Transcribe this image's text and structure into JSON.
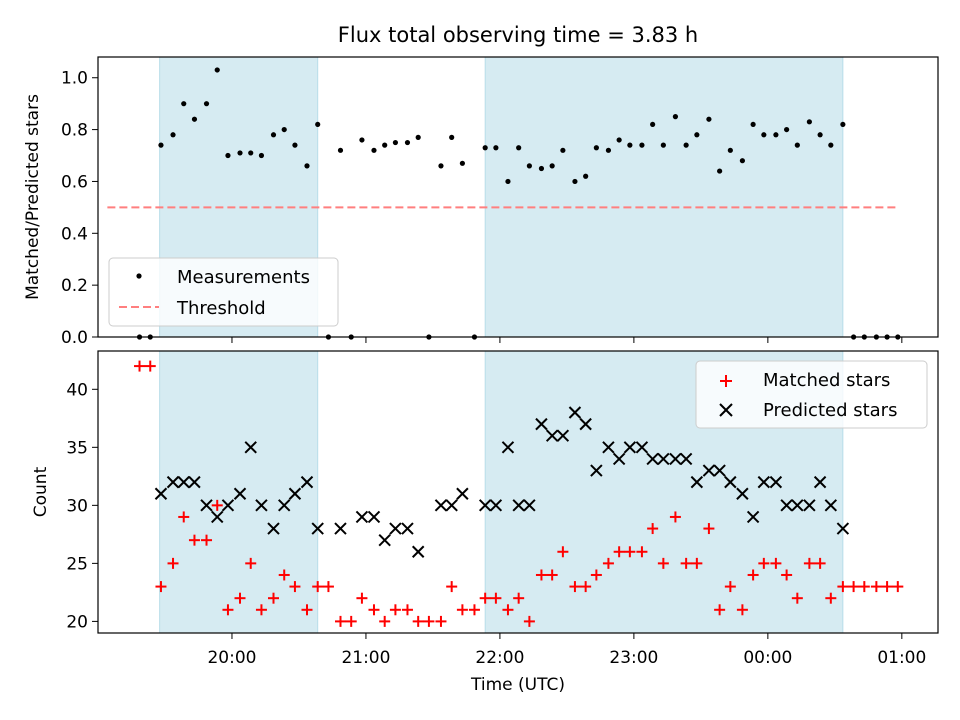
{
  "chart_data": {
    "type": "scatter",
    "title": "Flux total observing time = 3.83 h",
    "xlabel": "Time (UTC)",
    "x_ticks": [
      "20:00",
      "21:00",
      "22:00",
      "23:00",
      "00:00",
      "01:00"
    ],
    "x_tick_hours": [
      20,
      21,
      22,
      23,
      24,
      25
    ],
    "xlim_hours": [
      19.0,
      25.27
    ],
    "shaded_intervals_hours": [
      [
        19.46,
        20.64
      ],
      [
        21.89,
        24.56
      ]
    ],
    "colors": {
      "shade": "#add8e6",
      "threshold": "#ff7f7f",
      "matched": "#ff0000",
      "predicted": "#000000"
    },
    "panels": [
      {
        "ylabel": "Matched/Predicted stars",
        "ylim": [
          0,
          1.08
        ],
        "yticks": [
          "0.0",
          "0.2",
          "0.4",
          "0.6",
          "0.8",
          "1.0"
        ],
        "ytick_values": [
          0,
          0.2,
          0.4,
          0.6,
          0.8,
          1.0
        ],
        "legend": {
          "location": "lower-left",
          "entries": [
            "Measurements",
            "Threshold"
          ]
        },
        "threshold": {
          "name": "Threshold",
          "value": 0.5,
          "x_range_hours": [
            19.07,
            24.97
          ]
        },
        "series": [
          {
            "name": "Measurements",
            "x": [
              19.31,
              19.39,
              19.47,
              19.56,
              19.64,
              19.72,
              19.81,
              19.89,
              19.97,
              20.06,
              20.14,
              20.22,
              20.31,
              20.39,
              20.47,
              20.56,
              20.64,
              20.72,
              20.81,
              20.89,
              20.97,
              21.06,
              21.14,
              21.22,
              21.31,
              21.39,
              21.47,
              21.56,
              21.64,
              21.72,
              21.81,
              21.89,
              21.97,
              22.06,
              22.14,
              22.22,
              22.31,
              22.39,
              22.47,
              22.56,
              22.64,
              22.72,
              22.81,
              22.89,
              22.97,
              23.06,
              23.14,
              23.22,
              23.31,
              23.39,
              23.47,
              23.56,
              23.64,
              23.72,
              23.81,
              23.89,
              23.97,
              24.06,
              24.14,
              24.22,
              24.31,
              24.39,
              24.47,
              24.56,
              24.64,
              24.72,
              24.81,
              24.89,
              24.97
            ],
            "y": [
              0.0,
              0.0,
              0.74,
              0.78,
              0.9,
              0.84,
              0.9,
              1.03,
              0.7,
              0.71,
              0.71,
              0.7,
              0.78,
              0.8,
              0.74,
              0.66,
              0.82,
              0.0,
              0.72,
              0.0,
              0.76,
              0.72,
              0.74,
              0.75,
              0.75,
              0.77,
              0.0,
              0.66,
              0.77,
              0.67,
              0.0,
              0.73,
              0.73,
              0.6,
              0.73,
              0.66,
              0.65,
              0.66,
              0.72,
              0.6,
              0.62,
              0.73,
              0.72,
              0.76,
              0.74,
              0.74,
              0.82,
              0.74,
              0.85,
              0.74,
              0.78,
              0.84,
              0.64,
              0.72,
              0.68,
              0.82,
              0.78,
              0.78,
              0.8,
              0.74,
              0.83,
              0.78,
              0.74,
              0.82,
              0.0,
              0.0,
              0.0,
              0.0,
              0.0
            ]
          }
        ]
      },
      {
        "ylabel": "Count",
        "ylim": [
          19,
          43.3
        ],
        "yticks": [
          "20",
          "25",
          "30",
          "35",
          "40"
        ],
        "ytick_values": [
          20,
          25,
          30,
          35,
          40
        ],
        "legend": {
          "location": "upper-right",
          "entries": [
            "Matched stars",
            "Predicted stars"
          ]
        },
        "series": [
          {
            "name": "Matched stars",
            "marker": "plus",
            "x": [
              19.31,
              19.39,
              19.47,
              19.56,
              19.64,
              19.72,
              19.81,
              19.89,
              19.97,
              20.06,
              20.14,
              20.22,
              20.31,
              20.39,
              20.47,
              20.56,
              20.64,
              20.72,
              20.81,
              20.89,
              20.97,
              21.06,
              21.14,
              21.22,
              21.31,
              21.39,
              21.47,
              21.56,
              21.64,
              21.72,
              21.81,
              21.89,
              21.97,
              22.06,
              22.14,
              22.22,
              22.31,
              22.39,
              22.47,
              22.56,
              22.64,
              22.72,
              22.81,
              22.89,
              22.97,
              23.06,
              23.14,
              23.22,
              23.31,
              23.39,
              23.47,
              23.56,
              23.64,
              23.72,
              23.81,
              23.89,
              23.97,
              24.06,
              24.14,
              24.22,
              24.31,
              24.39,
              24.47,
              24.56,
              24.64,
              24.72,
              24.81,
              24.89,
              24.97
            ],
            "y": [
              42,
              42,
              23,
              25,
              29,
              27,
              27,
              30,
              21,
              22,
              25,
              21,
              22,
              24,
              23,
              21,
              23,
              23,
              20,
              20,
              22,
              21,
              20,
              21,
              21,
              20,
              20,
              20,
              23,
              21,
              21,
              22,
              22,
              21,
              22,
              20,
              24,
              24,
              26,
              23,
              23,
              24,
              25,
              26,
              26,
              26,
              28,
              25,
              29,
              25,
              25,
              28,
              21,
              23,
              21,
              24,
              25,
              25,
              24,
              22,
              25,
              25,
              22,
              23,
              23,
              23,
              23,
              23,
              23
            ]
          },
          {
            "name": "Predicted stars",
            "marker": "x",
            "x": [
              19.47,
              19.56,
              19.64,
              19.72,
              19.81,
              19.89,
              19.97,
              20.06,
              20.14,
              20.22,
              20.31,
              20.39,
              20.47,
              20.56,
              20.64,
              20.81,
              20.97,
              21.06,
              21.14,
              21.22,
              21.31,
              21.39,
              21.56,
              21.64,
              21.72,
              21.89,
              21.97,
              22.06,
              22.14,
              22.22,
              22.31,
              22.39,
              22.47,
              22.56,
              22.64,
              22.72,
              22.81,
              22.89,
              22.97,
              23.06,
              23.14,
              23.22,
              23.31,
              23.39,
              23.47,
              23.56,
              23.64,
              23.72,
              23.81,
              23.89,
              23.97,
              24.06,
              24.14,
              24.22,
              24.31,
              24.39,
              24.47,
              24.56
            ],
            "y": [
              31,
              32,
              32,
              32,
              30,
              29,
              30,
              31,
              35,
              30,
              28,
              30,
              31,
              32,
              28,
              28,
              29,
              29,
              27,
              28,
              28,
              26,
              30,
              30,
              31,
              30,
              30,
              35,
              30,
              30,
              37,
              36,
              36,
              38,
              37,
              33,
              35,
              34,
              35,
              35,
              34,
              34,
              34,
              34,
              32,
              33,
              33,
              32,
              31,
              29,
              32,
              32,
              30,
              30,
              30,
              32,
              30,
              28
            ]
          }
        ]
      }
    ]
  }
}
